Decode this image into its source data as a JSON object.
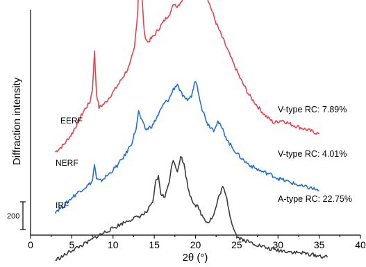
{
  "chart_data": {
    "type": "line",
    "xlabel": "2θ (°)",
    "ylabel": "Diffraction intensity",
    "xlim": [
      0,
      40
    ],
    "x_ticks": [
      "0",
      "5",
      "10",
      "15",
      "20",
      "25",
      "30",
      "35",
      "40"
    ],
    "scale_bar": {
      "label": "200",
      "value": 200
    },
    "grid": false,
    "series": [
      {
        "name": "EERF",
        "color": "#e8414a",
        "annotation": "V-type RC: 7.89%",
        "points": [
          [
            3.0,
            630
          ],
          [
            4.0,
            680
          ],
          [
            5.0,
            760
          ],
          [
            5.8,
            850
          ],
          [
            6.5,
            930
          ],
          [
            7.2,
            990
          ],
          [
            7.5,
            1080
          ],
          [
            7.75,
            1350
          ],
          [
            8.0,
            1050
          ],
          [
            8.3,
            950
          ],
          [
            9.0,
            980
          ],
          [
            10.0,
            1060
          ],
          [
            11.0,
            1150
          ],
          [
            12.0,
            1250
          ],
          [
            12.6,
            1380
          ],
          [
            13.0,
            1650
          ],
          [
            13.25,
            2120
          ],
          [
            13.5,
            1750
          ],
          [
            13.8,
            1480
          ],
          [
            14.2,
            1420
          ],
          [
            15.0,
            1470
          ],
          [
            15.8,
            1540
          ],
          [
            16.5,
            1600
          ],
          [
            17.0,
            1640
          ],
          [
            17.4,
            1700
          ],
          [
            17.8,
            1680
          ],
          [
            18.3,
            1720
          ],
          [
            19.0,
            1770
          ],
          [
            19.6,
            1860
          ],
          [
            20.0,
            2020
          ],
          [
            20.2,
            2120
          ],
          [
            20.5,
            1980
          ],
          [
            21.0,
            1820
          ],
          [
            21.8,
            1680
          ],
          [
            22.5,
            1560
          ],
          [
            23.5,
            1420
          ],
          [
            24.5,
            1280
          ],
          [
            25.5,
            1150
          ],
          [
            26.5,
            1040
          ],
          [
            27.5,
            960
          ],
          [
            28.5,
            890
          ],
          [
            29.5,
            840
          ],
          [
            30.5,
            860
          ],
          [
            31.5,
            830
          ],
          [
            32.5,
            810
          ],
          [
            33.5,
            790
          ],
          [
            35.0,
            760
          ]
        ]
      },
      {
        "name": "NERF",
        "color": "#1f6fd6",
        "annotation": "V-type RC: 4.01%",
        "points": [
          [
            3.0,
            200
          ],
          [
            4.0,
            240
          ],
          [
            5.0,
            300
          ],
          [
            6.0,
            350
          ],
          [
            7.0,
            390
          ],
          [
            7.5,
            420
          ],
          [
            7.75,
            540
          ],
          [
            8.0,
            430
          ],
          [
            8.5,
            420
          ],
          [
            9.5,
            470
          ],
          [
            10.5,
            530
          ],
          [
            11.5,
            610
          ],
          [
            12.3,
            700
          ],
          [
            12.8,
            800
          ],
          [
            13.1,
            920
          ],
          [
            13.5,
            850
          ],
          [
            14.0,
            790
          ],
          [
            14.8,
            820
          ],
          [
            15.5,
            900
          ],
          [
            16.2,
            980
          ],
          [
            16.8,
            1010
          ],
          [
            17.3,
            1080
          ],
          [
            17.8,
            1120
          ],
          [
            18.2,
            1060
          ],
          [
            18.8,
            1000
          ],
          [
            19.5,
            1030
          ],
          [
            20.0,
            1150
          ],
          [
            20.3,
            1080
          ],
          [
            20.8,
            940
          ],
          [
            21.5,
            830
          ],
          [
            22.2,
            790
          ],
          [
            22.7,
            850
          ],
          [
            23.2,
            800
          ],
          [
            24.0,
            700
          ],
          [
            25.0,
            620
          ],
          [
            26.0,
            560
          ],
          [
            27.0,
            520
          ],
          [
            28.0,
            490
          ],
          [
            29.0,
            470
          ],
          [
            30.0,
            440
          ],
          [
            31.0,
            420
          ],
          [
            32.0,
            400
          ],
          [
            33.0,
            380
          ],
          [
            34.0,
            370
          ],
          [
            35.0,
            350
          ]
        ]
      },
      {
        "name": "IRF",
        "color": "#3a3a3a",
        "annotation": "A-type RC: 22.75%",
        "points": [
          [
            3.0,
            -150
          ],
          [
            4.0,
            -120
          ],
          [
            5.0,
            -80
          ],
          [
            6.0,
            -50
          ],
          [
            7.0,
            -20
          ],
          [
            8.0,
            20
          ],
          [
            9.0,
            50
          ],
          [
            10.0,
            80
          ],
          [
            11.0,
            110
          ],
          [
            12.0,
            140
          ],
          [
            13.0,
            160
          ],
          [
            14.0,
            190
          ],
          [
            14.8,
            260
          ],
          [
            15.2,
            420
          ],
          [
            15.5,
            450
          ],
          [
            15.8,
            330
          ],
          [
            16.3,
            300
          ],
          [
            16.8,
            420
          ],
          [
            17.3,
            580
          ],
          [
            17.8,
            490
          ],
          [
            18.2,
            600
          ],
          [
            18.6,
            540
          ],
          [
            19.2,
            340
          ],
          [
            19.8,
            260
          ],
          [
            20.3,
            230
          ],
          [
            20.8,
            170
          ],
          [
            21.5,
            120
          ],
          [
            22.2,
            170
          ],
          [
            22.8,
            300
          ],
          [
            23.3,
            380
          ],
          [
            23.8,
            290
          ],
          [
            24.3,
            140
          ],
          [
            25.0,
            20
          ],
          [
            26.0,
            -10
          ],
          [
            27.0,
            -30
          ],
          [
            28.0,
            -50
          ],
          [
            29.0,
            -70
          ],
          [
            30.0,
            -80
          ],
          [
            31.0,
            -85
          ],
          [
            32.0,
            -95
          ],
          [
            33.0,
            -100
          ],
          [
            34.0,
            -110
          ],
          [
            35.0,
            -120
          ],
          [
            36.0,
            -130
          ]
        ]
      }
    ]
  }
}
